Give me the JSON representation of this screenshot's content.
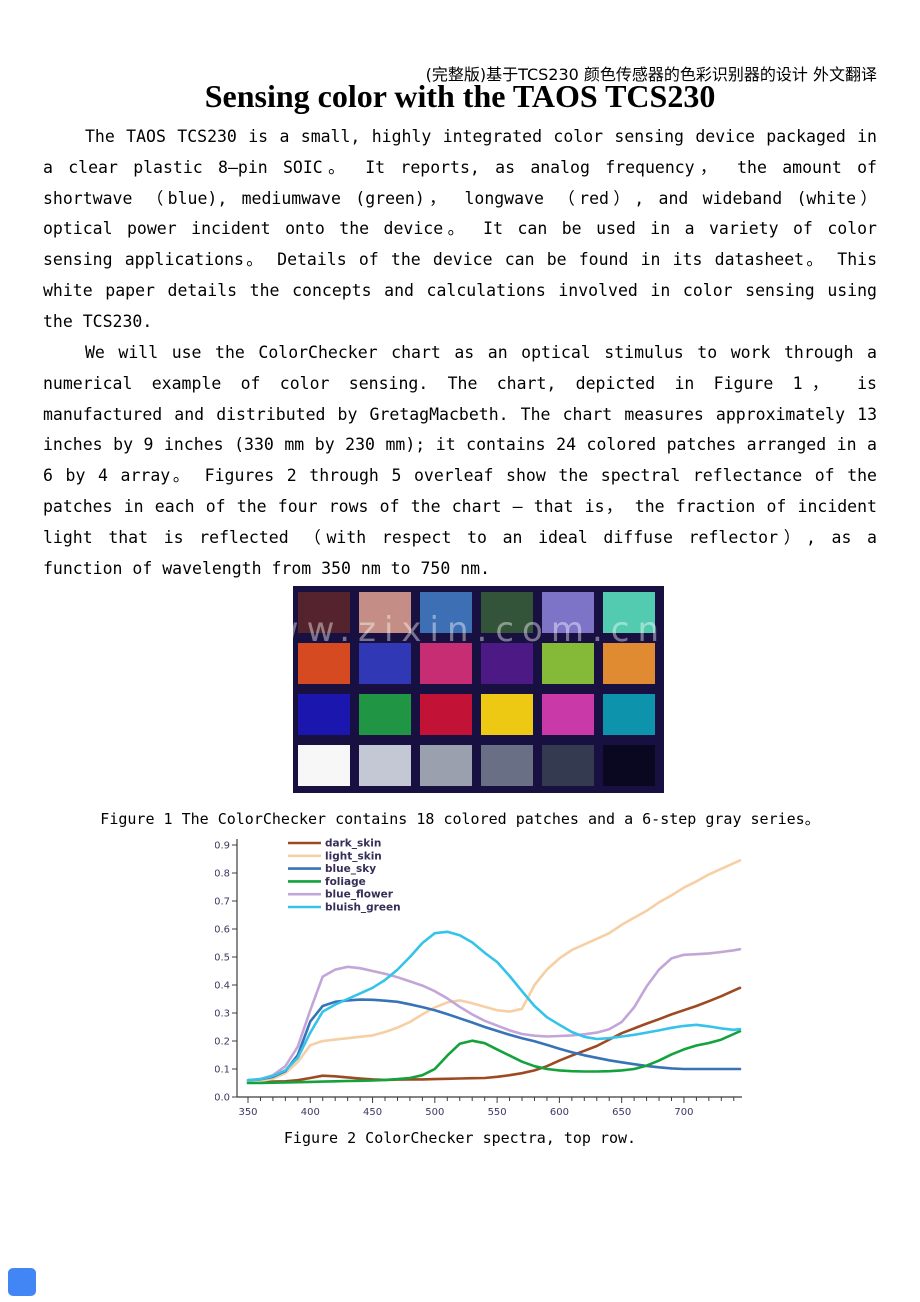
{
  "page": {
    "header_note": "(完整版)基于TCS230 颜色传感器的色彩识别器的设计 外文翻译",
    "title": "Sensing color with the TAOS TCS230",
    "paragraphs": [
      "The TAOS TCS230 is a small, highly integrated color sensing device packaged in a clear plastic 8—pin SOIC。 It reports, as analog frequency， the amount of shortwave （blue), mediumwave (green)， longwave （red）, and wideband (white） optical power incident onto the device。 It can be used in a variety of color sensing applications。 Details of the device can be found in its datasheet。 This white paper details the concepts and calculations involved in color sensing using the TCS230.",
      "We will use the ColorChecker chart as an optical stimulus to work through a numerical example of color sensing. The chart, depicted in Figure 1， is manufactured and distributed by GretagMacbeth. The chart measures approximately 13 inches by 9 inches (330 mm by 230 mm);  it contains 24 colored patches arranged in a 6 by 4 array。 Figures 2 through 5 overleaf show the spectral reflectance of the patches in each of the four rows of the chart – that is， the fraction of incident light that is reflected （with respect to an ideal diffuse reflector）, as a function of wavelength from 350 nm to 750 nm."
    ],
    "figure1_caption": "Figure 1 The ColorChecker contains 18 colored patches and a 6-step gray series。",
    "figure2_caption": "Figure 2 ColorChecker spectra, top row."
  },
  "colorchecker": {
    "watermark": "www.zixin.com.cn",
    "background": "#181040",
    "patches": [
      "#54232e",
      "#c48d85",
      "#3c6fb4",
      "#34543a",
      "#7d74c8",
      "#52cbb0",
      "#d54a20",
      "#3138b6",
      "#c62d73",
      "#4d1a85",
      "#84ba38",
      "#e08a31",
      "#1b16ae",
      "#209644",
      "#c21336",
      "#eec913",
      "#c93aa8",
      "#0e93ad",
      "#f8f7f7",
      "#c4c7d4",
      "#9ba0ae",
      "#697086",
      "#343a4f",
      "#0a0820"
    ]
  },
  "chart_data": {
    "type": "line",
    "title": "",
    "xlabel": "",
    "ylabel": "",
    "xlim": [
      350,
      745
    ],
    "ylim": [
      0.0,
      0.9
    ],
    "x_ticks": [
      350,
      400,
      450,
      500,
      550,
      600,
      650,
      700
    ],
    "x_minor_step": 10,
    "y_ticks": [
      0.0,
      0.1,
      0.2,
      0.3,
      0.4,
      0.5,
      0.6,
      0.7,
      0.8,
      0.9
    ],
    "grid": false,
    "legend_position": "top-left",
    "axis_color": "#3c3c3c",
    "tick_label_color": "#3f3660",
    "legend_text_color": "#372e58",
    "x": [
      350,
      360,
      370,
      380,
      390,
      400,
      410,
      420,
      430,
      440,
      450,
      460,
      470,
      480,
      490,
      500,
      510,
      520,
      530,
      540,
      550,
      560,
      570,
      580,
      590,
      600,
      610,
      620,
      630,
      640,
      650,
      660,
      670,
      680,
      690,
      700,
      710,
      720,
      730,
      740,
      745
    ],
    "series": [
      {
        "name": "dark_skin",
        "color": "#9d4a22",
        "values": [
          0.055,
          0.055,
          0.055,
          0.056,
          0.06,
          0.068,
          0.076,
          0.074,
          0.07,
          0.066,
          0.063,
          0.061,
          0.062,
          0.063,
          0.063,
          0.064,
          0.065,
          0.066,
          0.067,
          0.068,
          0.072,
          0.078,
          0.085,
          0.095,
          0.11,
          0.13,
          0.148,
          0.165,
          0.182,
          0.205,
          0.228,
          0.245,
          0.262,
          0.278,
          0.295,
          0.31,
          0.325,
          0.342,
          0.36,
          0.38,
          0.39
        ]
      },
      {
        "name": "light_skin",
        "color": "#f7cfa5",
        "values": [
          0.055,
          0.058,
          0.065,
          0.085,
          0.125,
          0.185,
          0.2,
          0.205,
          0.21,
          0.215,
          0.22,
          0.232,
          0.248,
          0.268,
          0.295,
          0.32,
          0.338,
          0.345,
          0.335,
          0.322,
          0.31,
          0.305,
          0.315,
          0.4,
          0.455,
          0.495,
          0.525,
          0.545,
          0.565,
          0.585,
          0.615,
          0.64,
          0.665,
          0.695,
          0.72,
          0.748,
          0.77,
          0.795,
          0.815,
          0.835,
          0.845
        ]
      },
      {
        "name": "blue_sky",
        "color": "#3873b8",
        "values": [
          0.06,
          0.063,
          0.072,
          0.092,
          0.15,
          0.27,
          0.325,
          0.34,
          0.345,
          0.348,
          0.347,
          0.344,
          0.34,
          0.331,
          0.321,
          0.31,
          0.296,
          0.281,
          0.266,
          0.25,
          0.236,
          0.222,
          0.21,
          0.199,
          0.186,
          0.172,
          0.16,
          0.149,
          0.14,
          0.131,
          0.124,
          0.117,
          0.111,
          0.106,
          0.102,
          0.1,
          0.1,
          0.1,
          0.1,
          0.1,
          0.1
        ]
      },
      {
        "name": "foliage",
        "color": "#13a23c",
        "values": [
          0.05,
          0.05,
          0.051,
          0.052,
          0.053,
          0.054,
          0.055,
          0.056,
          0.057,
          0.058,
          0.059,
          0.061,
          0.064,
          0.068,
          0.078,
          0.1,
          0.148,
          0.19,
          0.201,
          0.192,
          0.17,
          0.148,
          0.126,
          0.11,
          0.1,
          0.095,
          0.092,
          0.091,
          0.091,
          0.092,
          0.095,
          0.1,
          0.112,
          0.13,
          0.152,
          0.17,
          0.184,
          0.193,
          0.205,
          0.225,
          0.235
        ]
      },
      {
        "name": "blue_flower",
        "color": "#c3a6d8",
        "values": [
          0.06,
          0.064,
          0.078,
          0.11,
          0.18,
          0.31,
          0.43,
          0.455,
          0.465,
          0.46,
          0.45,
          0.44,
          0.428,
          0.413,
          0.398,
          0.378,
          0.352,
          0.322,
          0.295,
          0.272,
          0.255,
          0.238,
          0.225,
          0.219,
          0.216,
          0.218,
          0.22,
          0.224,
          0.23,
          0.242,
          0.268,
          0.32,
          0.395,
          0.455,
          0.495,
          0.508,
          0.51,
          0.513,
          0.518,
          0.524,
          0.528
        ]
      },
      {
        "name": "bluish_green",
        "color": "#35c3ea",
        "values": [
          0.06,
          0.064,
          0.075,
          0.095,
          0.14,
          0.23,
          0.305,
          0.33,
          0.35,
          0.37,
          0.39,
          0.418,
          0.455,
          0.5,
          0.55,
          0.585,
          0.59,
          0.578,
          0.552,
          0.515,
          0.482,
          0.432,
          0.378,
          0.325,
          0.285,
          0.258,
          0.232,
          0.215,
          0.207,
          0.21,
          0.216,
          0.222,
          0.23,
          0.238,
          0.247,
          0.254,
          0.258,
          0.252,
          0.245,
          0.24,
          0.242
        ]
      }
    ]
  }
}
